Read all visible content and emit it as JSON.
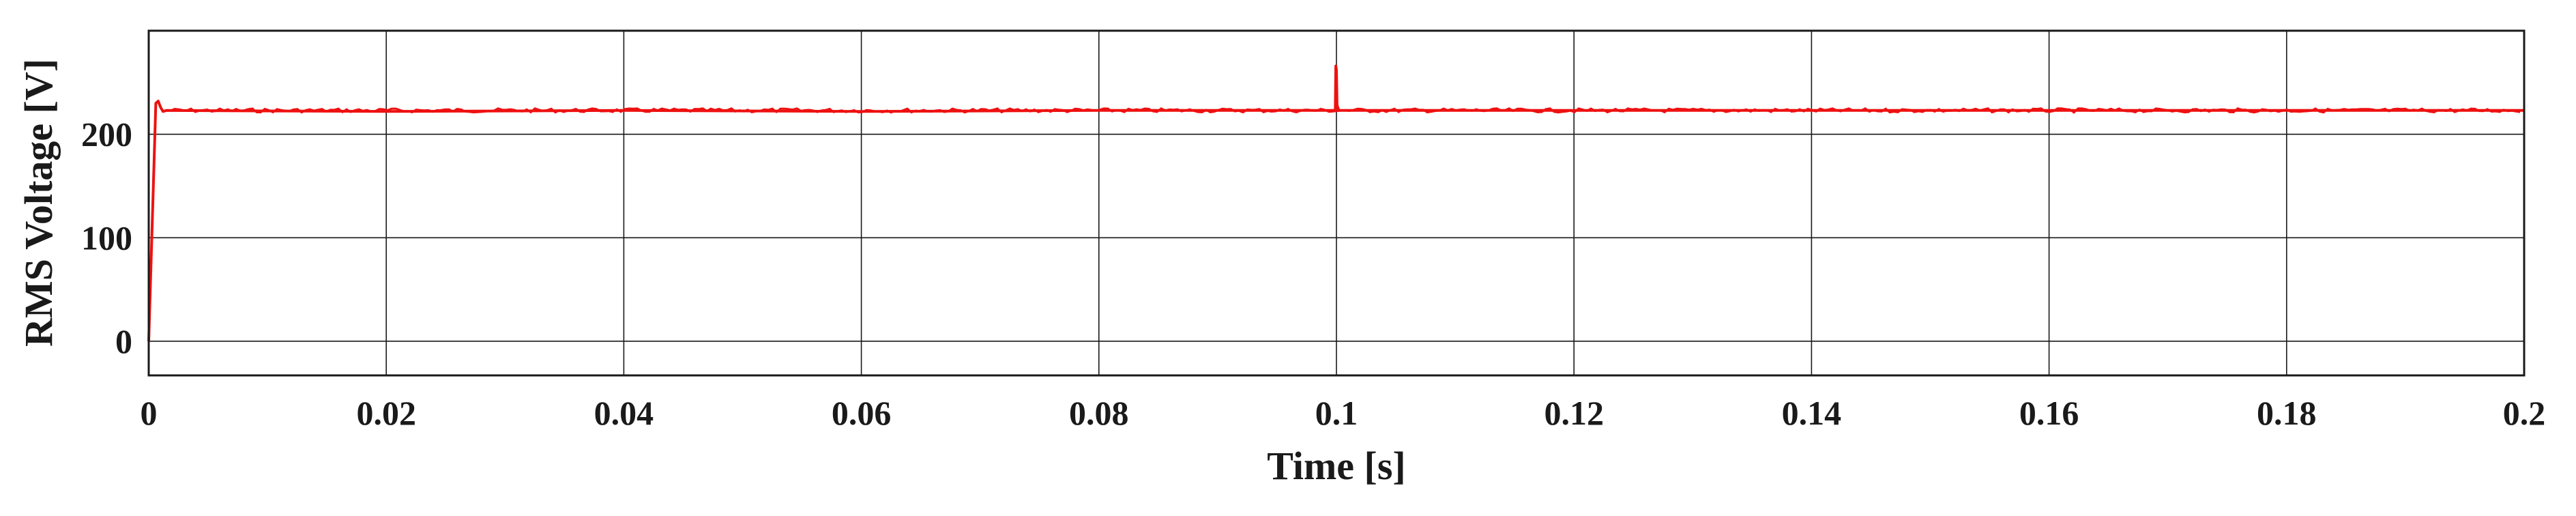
{
  "chart_data": {
    "type": "line",
    "xlabel": "Time [s]",
    "ylabel": "RMS Voltage [V]",
    "xlim": [
      0,
      0.2
    ],
    "ylim": [
      -33,
      300
    ],
    "x_ticks": [
      0,
      0.02,
      0.04,
      0.06,
      0.08,
      0.1,
      0.12,
      0.14,
      0.16,
      0.18,
      0.2
    ],
    "x_tick_labels": [
      "0",
      "0.02",
      "0.04",
      "0.06",
      "0.08",
      "0.1",
      "0.12",
      "0.14",
      "0.16",
      "0.18",
      "0.2"
    ],
    "y_ticks": [
      0,
      100,
      200
    ],
    "y_tick_labels": [
      "0",
      "100",
      "200"
    ],
    "grid": true,
    "line_color": "#ee1111",
    "series": [
      {
        "x": [
          0,
          0.0006,
          0.0008,
          0.001,
          0.0012,
          0.0015,
          0.02,
          0.04,
          0.06,
          0.08,
          0.0999,
          0.09995,
          0.1,
          0.10005,
          0.1002,
          0.12,
          0.14,
          0.16,
          0.18,
          0.2
        ],
        "values": [
          0,
          230,
          232,
          226,
          222,
          223,
          222,
          223,
          222,
          223,
          223,
          266,
          262,
          228,
          223,
          223,
          223,
          223,
          223,
          223
        ]
      }
    ]
  }
}
